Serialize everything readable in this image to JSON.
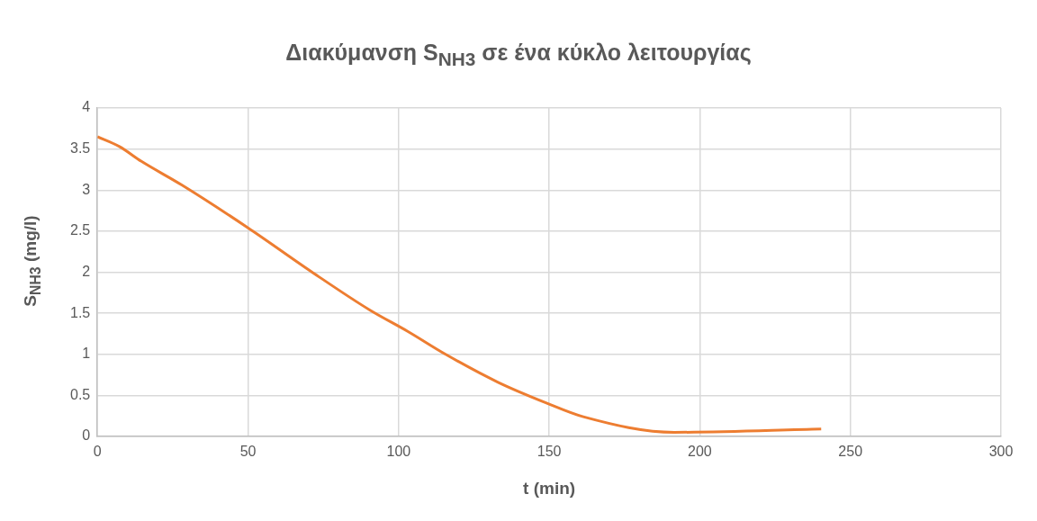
{
  "chart_data": {
    "type": "line",
    "title": "Διακύμανση S$_{NH3}$ σε ένα κύκλο λειτουργίας",
    "xlabel": "t (min)",
    "ylabel": "S$_{NH3}$ (mg/l)",
    "x": [
      0,
      7.3,
      14.6,
      28.1,
      50,
      71.7,
      90.4,
      103,
      115.6,
      133,
      148.9,
      161.3,
      191.5,
      240.3
    ],
    "series": [
      {
        "color": "#ed7d31",
        "values": [
          3.65,
          3.53,
          3.35,
          3.06,
          2.54,
          1.99,
          1.54,
          1.28,
          1.0,
          0.66,
          0.41,
          0.24,
          0.05,
          0.09
        ]
      }
    ],
    "xlim": [
      0,
      300
    ],
    "xticks": [
      0,
      50,
      100,
      150,
      200,
      250,
      300
    ],
    "ylim": [
      0,
      4
    ],
    "yticks": [
      0,
      0.5,
      1,
      1.5,
      2,
      2.5,
      3,
      3.5,
      4
    ],
    "grid": true,
    "legend": false,
    "marker": "none",
    "line_style": "solid"
  }
}
